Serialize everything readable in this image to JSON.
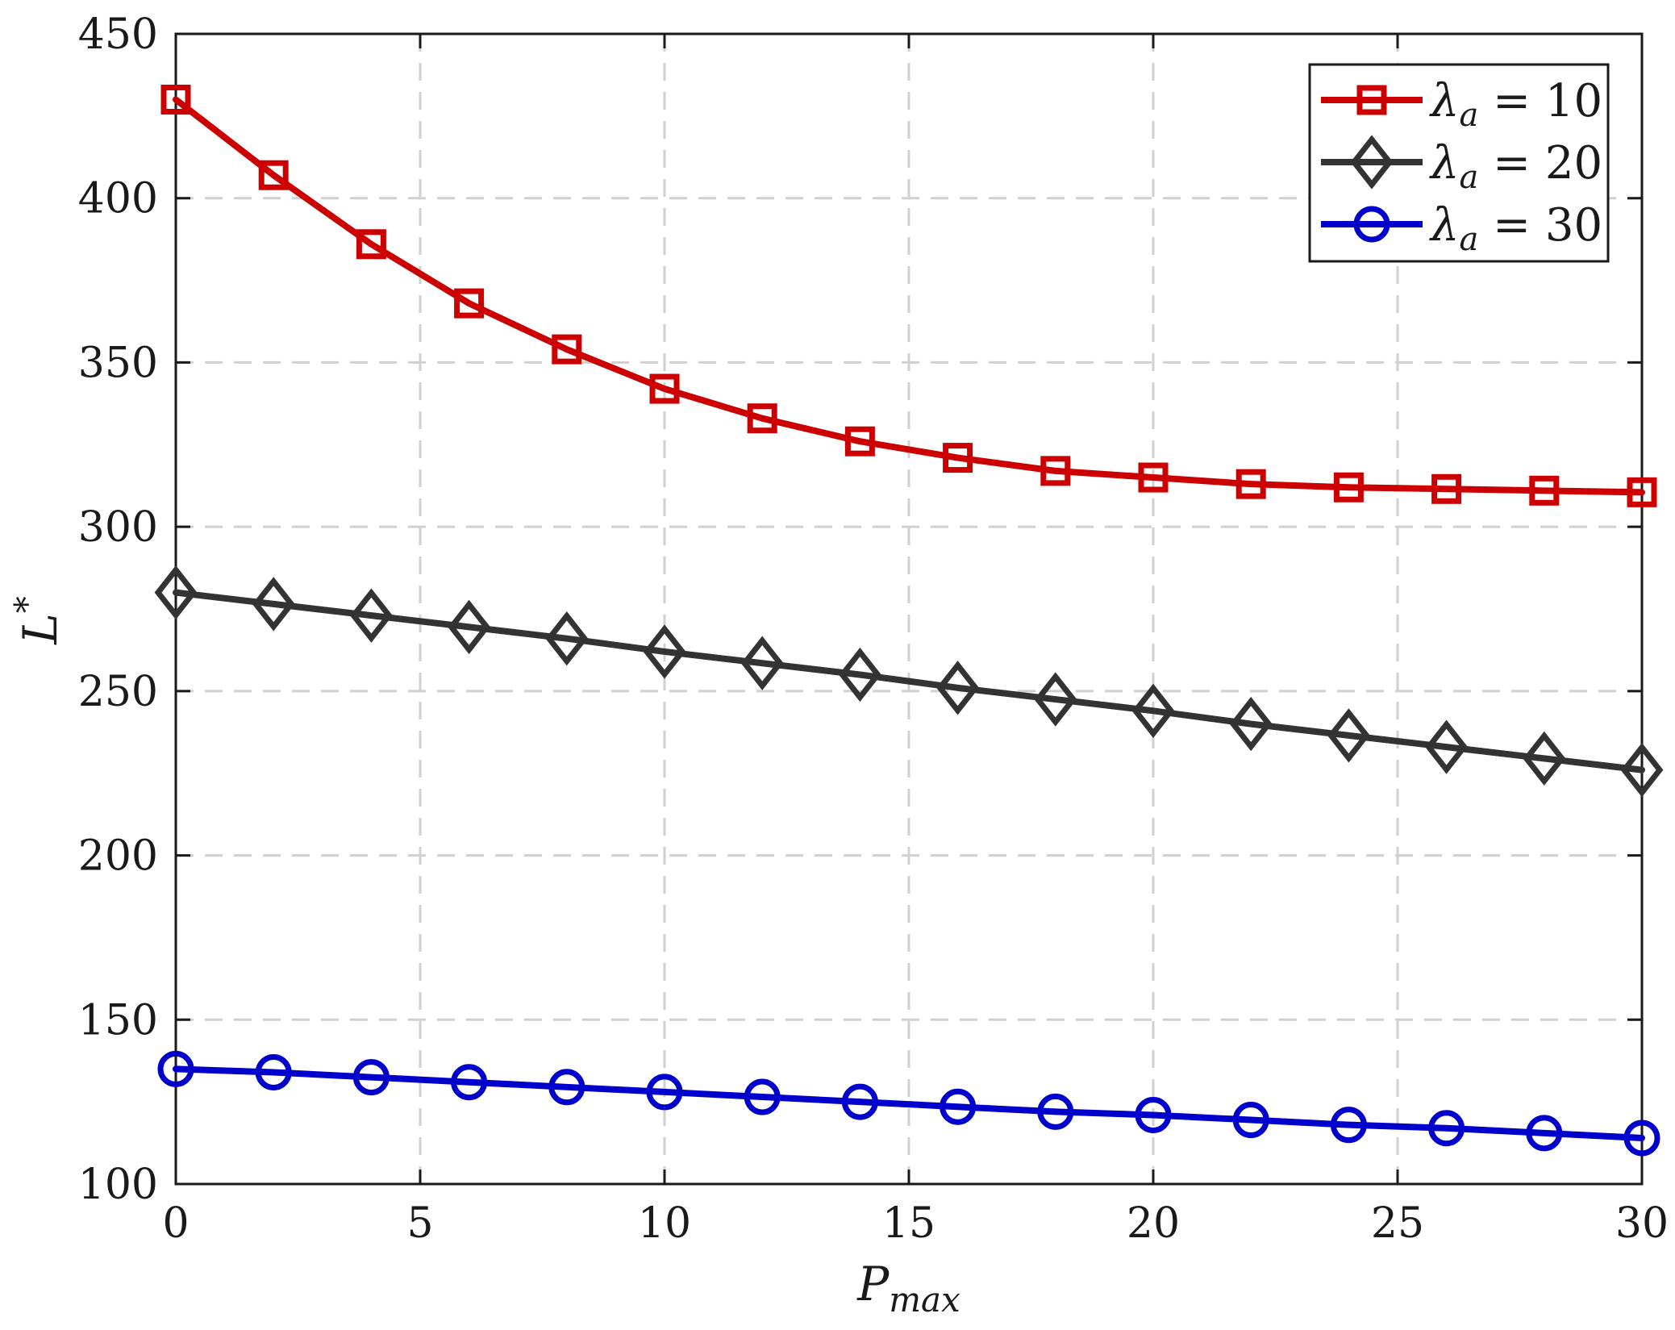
{
  "chart_data": {
    "type": "line",
    "title": "",
    "xlabel": "P",
    "xlabel_sub": "max",
    "ylabel": "L",
    "ylabel_sup": "*",
    "xlim": [
      0,
      30
    ],
    "ylim": [
      100,
      450
    ],
    "xticks": [
      0,
      5,
      10,
      15,
      20,
      25,
      30
    ],
    "yticks": [
      100,
      150,
      200,
      250,
      300,
      350,
      400,
      450
    ],
    "grid": true,
    "legend_position": "top-right",
    "x": [
      0,
      2,
      4,
      6,
      8,
      10,
      12,
      14,
      16,
      18,
      20,
      22,
      24,
      26,
      28,
      30
    ],
    "series": [
      {
        "name": "λa = 10",
        "legend_symbol": "λ",
        "legend_sub": "a",
        "legend_rest": " = 10",
        "marker": "square",
        "color": "#cc0000",
        "values": [
          430,
          407,
          386,
          368,
          354,
          342,
          333,
          326,
          321,
          317,
          315,
          313,
          312,
          311.5,
          311,
          310.5
        ]
      },
      {
        "name": "λa = 20",
        "legend_symbol": "λ",
        "legend_sub": "a",
        "legend_rest": " = 20",
        "marker": "diamond",
        "color": "#333333",
        "values": [
          280,
          276.5,
          273,
          269.5,
          266,
          262,
          258.5,
          255,
          251,
          247.5,
          244,
          240,
          236.5,
          233,
          229.5,
          226
        ]
      },
      {
        "name": "λa = 30",
        "legend_symbol": "λ",
        "legend_sub": "a",
        "legend_rest": " = 30",
        "marker": "circle",
        "color": "#0000cc",
        "values": [
          135,
          134,
          132.5,
          131,
          129.5,
          128,
          126.5,
          125,
          123.5,
          122,
          121,
          119.5,
          118,
          117,
          115.5,
          114
        ]
      }
    ]
  }
}
